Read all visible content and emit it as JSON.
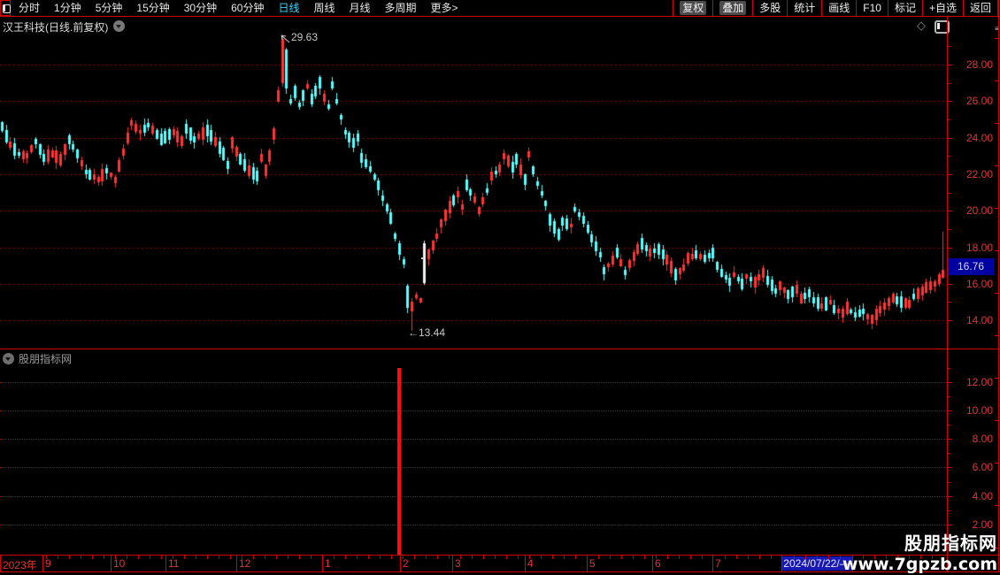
{
  "toolbar": {
    "left_items": [
      {
        "label": "分时",
        "active": false
      },
      {
        "label": "1分钟",
        "active": false
      },
      {
        "label": "5分钟",
        "active": false
      },
      {
        "label": "15分钟",
        "active": false
      },
      {
        "label": "30分钟",
        "active": false
      },
      {
        "label": "60分钟",
        "active": false
      },
      {
        "label": "日线",
        "active": true
      },
      {
        "label": "周线",
        "active": false
      },
      {
        "label": "月线",
        "active": false
      },
      {
        "label": "多周期",
        "active": false
      },
      {
        "label": "更多>",
        "active": false
      }
    ],
    "right_items": [
      {
        "label": "复权",
        "boxed": true
      },
      {
        "label": "叠加",
        "boxed": true
      },
      {
        "label": "多股",
        "boxed": false
      },
      {
        "label": "统计",
        "boxed": false
      },
      {
        "label": "画线",
        "boxed": false
      },
      {
        "label": "F10",
        "boxed": false
      },
      {
        "label": "标记",
        "boxed": false
      },
      {
        "label": "+自选",
        "boxed": false
      },
      {
        "label": "返回",
        "boxed": false
      }
    ]
  },
  "title_bar": {
    "title": "汉王科技(日线.前复权)"
  },
  "sub_panel": {
    "label": "股朋指标网"
  },
  "watermark": {
    "line1": "股朋指标网",
    "line2": "www.7gpzb.com"
  },
  "colors": {
    "up": "#ff3434",
    "down": "#58ffff",
    "white_candle": "#f2f2f2",
    "grid": "#c00000",
    "frame": "#d40000",
    "axis_text": "#e13434",
    "active_tab": "#2fd8ff",
    "price_tag_bg": "#0000a2",
    "date_tag_bg": "#1717b4",
    "signal": "#ff0c0c"
  },
  "chart_data": {
    "type": "candlestick",
    "title": "汉王科技 日线 前复权",
    "price_axis": {
      "tick_labels": [
        "28.00",
        "26.00",
        "24.00",
        "22.00",
        "20.00",
        "18.00",
        "16.00",
        "14.00"
      ],
      "tick_values": [
        28,
        26,
        24,
        22,
        20,
        18,
        16,
        14
      ],
      "minor_values": [
        29,
        27,
        25,
        23,
        21,
        19,
        17,
        15
      ],
      "current": "16.76",
      "current_value": 16.76
    },
    "annotations": [
      {
        "kind": "peak",
        "text": "29.63",
        "value": 29.63
      },
      {
        "kind": "trough",
        "text": "←13.44",
        "value": 13.44
      }
    ],
    "x_axis": {
      "labels": [
        "2023年",
        "9",
        "10",
        "11",
        "12",
        "1",
        "2",
        "3",
        "4",
        "5",
        "6",
        "7"
      ],
      "boundaries": [
        0,
        48,
        125,
        187,
        267,
        364,
        452,
        511,
        593,
        663,
        737,
        805,
        883,
        963
      ],
      "last_date": "2024/07/22/—"
    },
    "candles": {
      "count": 226,
      "anchors": [
        [
          0,
          24.6
        ],
        [
          2,
          23.6
        ],
        [
          4,
          23.1
        ],
        [
          6,
          23.0
        ],
        [
          8,
          23.8
        ],
        [
          10,
          22.9
        ],
        [
          12,
          23.1
        ],
        [
          14,
          22.8
        ],
        [
          16,
          23.9
        ],
        [
          18,
          23.1
        ],
        [
          20,
          22.1
        ],
        [
          23,
          21.7
        ],
        [
          25,
          22.2
        ],
        [
          27,
          21.7
        ],
        [
          29,
          23.2
        ],
        [
          31,
          24.8
        ],
        [
          33,
          24.3
        ],
        [
          35,
          24.7
        ],
        [
          38,
          23.9
        ],
        [
          41,
          24.3
        ],
        [
          43,
          23.8
        ],
        [
          44,
          24.5
        ],
        [
          46,
          23.9
        ],
        [
          49,
          24.4
        ],
        [
          51,
          23.8
        ],
        [
          53,
          23.1
        ],
        [
          54,
          22.5
        ],
        [
          55,
          23.7
        ],
        [
          57,
          22.8
        ],
        [
          59,
          22.2
        ],
        [
          61,
          21.9
        ],
        [
          62,
          22.9
        ],
        [
          63,
          22.2
        ],
        [
          64,
          23.0
        ],
        [
          65,
          24.2
        ],
        [
          66,
          26.3
        ],
        [
          67,
          28.7
        ],
        [
          68,
          27.6
        ],
        [
          69,
          26.0
        ],
        [
          70,
          26.5
        ],
        [
          71,
          25.8
        ],
        [
          73,
          26.8
        ],
        [
          74,
          26.1
        ],
        [
          76,
          27.0
        ],
        [
          77,
          26.2
        ],
        [
          78,
          25.7
        ],
        [
          79,
          26.9
        ],
        [
          81,
          25.1
        ],
        [
          82,
          24.3
        ],
        [
          84,
          23.7
        ],
        [
          85,
          24.0
        ],
        [
          86,
          22.9
        ],
        [
          88,
          22.3
        ],
        [
          90,
          21.4
        ],
        [
          91,
          20.7
        ],
        [
          93,
          19.6
        ],
        [
          94,
          18.6
        ],
        [
          96,
          17.2
        ],
        [
          97,
          15.8
        ],
        [
          98,
          14.7
        ],
        [
          99,
          15.3
        ],
        [
          100,
          15.1
        ],
        [
          101,
          17.1
        ],
        [
          102,
          17.6
        ],
        [
          104,
          18.6
        ],
        [
          105,
          19.3
        ],
        [
          107,
          20.2
        ],
        [
          109,
          20.9
        ],
        [
          110,
          20.2
        ],
        [
          111,
          21.4
        ],
        [
          113,
          20.6
        ],
        [
          114,
          20.0
        ],
        [
          116,
          21.1
        ],
        [
          117,
          21.9
        ],
        [
          119,
          22.3
        ],
        [
          120,
          23.0
        ],
        [
          122,
          22.4
        ],
        [
          123,
          22.8
        ],
        [
          125,
          21.7
        ],
        [
          126,
          23.1
        ],
        [
          127,
          22.2
        ],
        [
          128,
          21.5
        ],
        [
          130,
          20.4
        ],
        [
          131,
          19.5
        ],
        [
          133,
          18.7
        ],
        [
          134,
          19.4
        ],
        [
          136,
          19.2
        ],
        [
          137,
          20.1
        ],
        [
          139,
          19.5
        ],
        [
          141,
          18.5
        ],
        [
          143,
          17.6
        ],
        [
          144,
          16.7
        ],
        [
          146,
          17.3
        ],
        [
          147,
          17.7
        ],
        [
          149,
          16.6
        ],
        [
          150,
          17.1
        ],
        [
          152,
          17.9
        ],
        [
          153,
          18.2
        ],
        [
          155,
          17.7
        ],
        [
          157,
          17.9
        ],
        [
          159,
          17.3
        ],
        [
          161,
          16.5
        ],
        [
          163,
          16.9
        ],
        [
          164,
          17.4
        ],
        [
          166,
          17.6
        ],
        [
          168,
          17.4
        ],
        [
          170,
          17.7
        ],
        [
          171,
          17.0
        ],
        [
          172,
          16.6
        ],
        [
          174,
          16.1
        ],
        [
          175,
          16.5
        ],
        [
          177,
          16.0
        ],
        [
          178,
          16.4
        ],
        [
          180,
          16.1
        ],
        [
          182,
          16.6
        ],
        [
          183,
          16.2
        ],
        [
          185,
          15.6
        ],
        [
          186,
          15.9
        ],
        [
          188,
          15.4
        ],
        [
          190,
          15.7
        ],
        [
          191,
          15.2
        ],
        [
          193,
          15.5
        ],
        [
          194,
          15.1
        ],
        [
          196,
          14.8
        ],
        [
          198,
          15.0
        ],
        [
          199,
          14.6
        ],
        [
          201,
          14.4
        ],
        [
          202,
          14.7
        ],
        [
          204,
          14.3
        ],
        [
          206,
          14.5
        ],
        [
          207,
          14.2
        ],
        [
          208,
          14.05
        ],
        [
          210,
          14.6
        ],
        [
          212,
          15.0
        ],
        [
          213,
          15.2
        ],
        [
          215,
          15.0
        ],
        [
          217,
          14.9
        ],
        [
          218,
          15.3
        ],
        [
          220,
          15.6
        ],
        [
          221,
          15.8
        ],
        [
          223,
          16.0
        ],
        [
          224,
          16.2
        ],
        [
          225,
          16.6
        ]
      ],
      "specials": [
        {
          "i": 67,
          "o": 27.0,
          "c": 29.4,
          "h": 29.63,
          "l": 26.8,
          "col": "up"
        },
        {
          "i": 68,
          "o": 28.8,
          "c": 26.7,
          "h": 28.9,
          "l": 26.4,
          "col": "down"
        },
        {
          "i": 97,
          "o": 15.9,
          "c": 14.7,
          "h": 16.0,
          "l": 14.4,
          "col": "down"
        },
        {
          "i": 98,
          "o": 14.5,
          "c": 15.0,
          "h": 15.2,
          "l": 13.44,
          "col": "up"
        },
        {
          "i": 101,
          "o": 16.05,
          "c": 18.2,
          "h": 18.35,
          "l": 15.95,
          "col": "white"
        },
        {
          "i": 224,
          "o": 16.0,
          "c": 16.5,
          "h": 16.6,
          "l": 15.85,
          "col": "up"
        },
        {
          "i": 225,
          "o": 16.35,
          "c": 16.76,
          "h": 18.85,
          "l": 16.3,
          "col": "up"
        }
      ]
    },
    "sub_panel": {
      "tick_labels": [
        "12.00",
        "10.00",
        "8.00",
        "6.00",
        "4.00",
        "2.00"
      ],
      "tick_values": [
        12,
        10,
        8,
        6,
        4,
        2
      ],
      "minor_values": [
        13,
        11,
        9,
        7,
        5,
        3,
        1
      ],
      "signal": {
        "index": 95,
        "value": 13.0
      }
    }
  }
}
